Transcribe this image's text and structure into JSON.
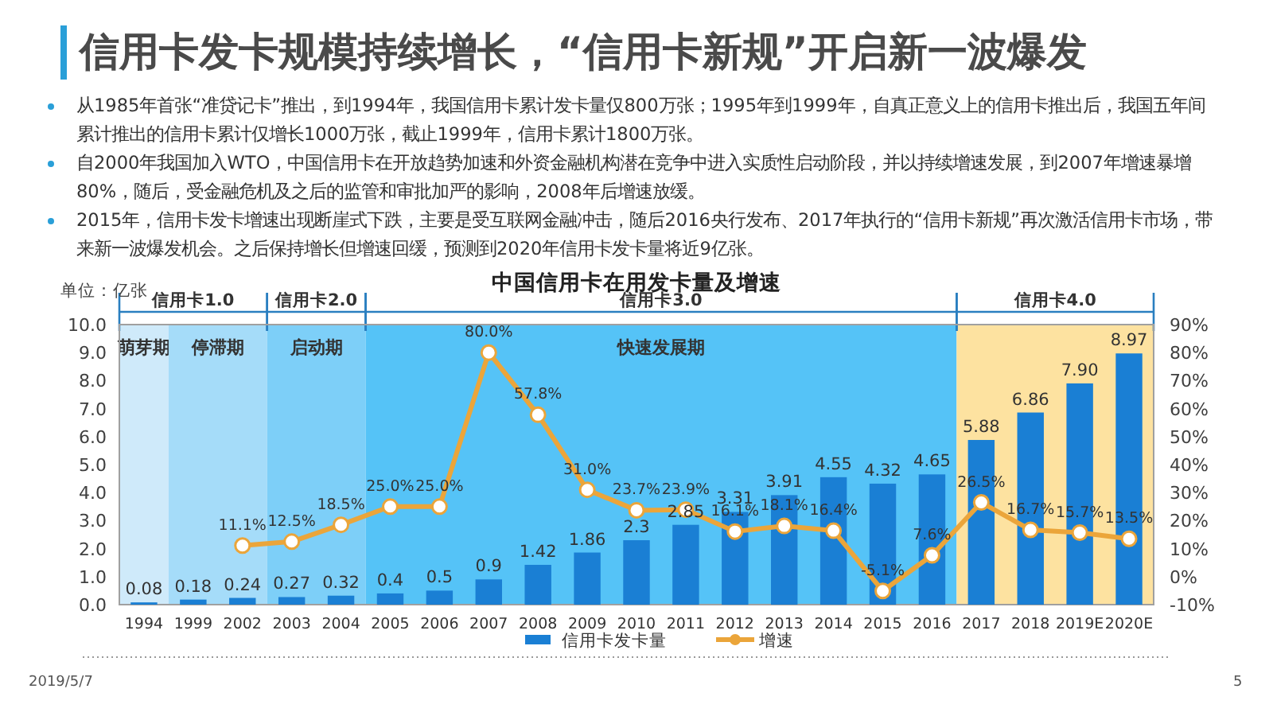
{
  "chart_data": {
    "type": "bar",
    "title": "信用卡发卡规模持续增长，“信用卡新规”开启新一波爆发",
    "subtitle": "中国信用卡在用发卡量及增速",
    "ylabel": "单位：亿张",
    "categories": [
      "1994",
      "1999",
      "2002",
      "2003",
      "2004",
      "2005",
      "2006",
      "2007",
      "2008",
      "2009",
      "2010",
      "2011",
      "2012",
      "2013",
      "2014",
      "2015",
      "2016",
      "2017",
      "2018",
      "2019E",
      "2020E"
    ],
    "series": [
      {
        "name": "信用卡发卡量",
        "type": "bar",
        "color": "#1a7fd4",
        "values": [
          0.08,
          0.18,
          0.24,
          0.27,
          0.32,
          0.4,
          0.5,
          0.9,
          1.42,
          1.86,
          2.3,
          2.85,
          3.31,
          3.91,
          4.55,
          4.32,
          4.65,
          5.88,
          6.86,
          7.9,
          8.97
        ],
        "value_labels": [
          "0.08",
          "0.18",
          "0.24",
          "0.27",
          "0.32",
          "0.4",
          "0.5",
          "0.9",
          "1.42",
          "1.86",
          "2.3",
          "2.85",
          "3.31",
          "3.91",
          "4.55",
          "4.32",
          "4.65",
          "5.88",
          "6.86",
          "7.90",
          "8.97"
        ]
      },
      {
        "name": "增速",
        "type": "line",
        "axis": "y2",
        "color": "#eba53a",
        "values": [
          null,
          null,
          11.1,
          12.5,
          18.5,
          25.0,
          25.0,
          80.0,
          57.8,
          31.0,
          23.7,
          23.9,
          16.1,
          18.1,
          16.4,
          -5.1,
          7.6,
          26.5,
          16.7,
          15.7,
          13.5
        ],
        "value_labels": [
          null,
          null,
          "11.1%",
          "12.5%",
          "18.5%",
          "25.0%",
          "25.0%",
          "80.0%",
          "57.8%",
          "31.0%",
          "23.7%",
          "23.9%",
          "16.1%",
          "18.1%",
          "16.4%",
          "-5.1%",
          "7.6%",
          "26.5%",
          "16.7%",
          "15.7%",
          "13.5%"
        ]
      }
    ],
    "ylim": [
      0,
      10
    ],
    "yticks": [
      {
        "value": 0,
        "label": "0.0"
      },
      {
        "value": 1,
        "label": "1.0"
      },
      {
        "value": 2,
        "label": "2.0"
      },
      {
        "value": 3,
        "label": "3.0"
      },
      {
        "value": 4,
        "label": "4.0"
      },
      {
        "value": 5,
        "label": "5.0"
      },
      {
        "value": 6,
        "label": "6.0"
      },
      {
        "value": 7,
        "label": "7.0"
      },
      {
        "value": 8,
        "label": "8.0"
      },
      {
        "value": 9,
        "label": "9.0"
      },
      {
        "value": 10,
        "label": "10.0"
      }
    ],
    "y2lim": [
      -10,
      90
    ],
    "y2ticks": [
      {
        "value": -10,
        "label": "-10%"
      },
      {
        "value": 0,
        "label": "0%"
      },
      {
        "value": 10,
        "label": "10%"
      },
      {
        "value": 20,
        "label": "20%"
      },
      {
        "value": 30,
        "label": "30%"
      },
      {
        "value": 40,
        "label": "40%"
      },
      {
        "value": 50,
        "label": "50%"
      },
      {
        "value": 60,
        "label": "60%"
      },
      {
        "value": 70,
        "label": "70%"
      },
      {
        "value": 80,
        "label": "80%"
      },
      {
        "value": 90,
        "label": "90%"
      }
    ],
    "bands": [
      {
        "axis": "x",
        "from": "1994",
        "to": "1994",
        "label": "萌芽期",
        "color": "#cfeafa"
      },
      {
        "axis": "x",
        "from": "1999",
        "to": "2002",
        "label": "停滞期",
        "color": "#a5dcf9"
      },
      {
        "axis": "x",
        "from": "2003",
        "to": "2004",
        "label": "启动期",
        "color": "#7dcff8"
      },
      {
        "axis": "x",
        "from": "2005",
        "to": "2016",
        "label": "快速发展期",
        "color": "#55c3f7"
      },
      {
        "axis": "x",
        "from": "2017",
        "to": "2020E",
        "color": "#fde2a0"
      }
    ],
    "annotations": [
      "从1985年首张“准贷记卡”推出，到1994年，我国信用卡累计发卡量仅800万张；1995年到1999年，自真正意义上的信用卡推出后，我国五年间累计推出的信用卡累计仅增长1000万张，截止1999年，信用卡累计1800万张。",
      "自2000年我国加入WTO，中国信用卡在开放趋势加速和外资金融机构潜在竞争中进入实质性启动阶段，并以持续增速发展，到2007年增速暴增80%，随后，受金融危机及之后的监管和审批加严的影响，2008年后增速放缓。",
      "2015年，信用卡发卡增速出现断崖式下跌，主要是受互联网金融冲击，随后2016央行发布、2017年执行的“信用卡新规”再次激活信用卡市场，带来新一波爆发机会。之后保持增长但增速回缓，预测到2020年信用卡发卡量将近9亿张。",
      "2019/5/7",
      "5",
      "信用卡1.0",
      "信用卡2.0",
      "信用卡3.0",
      "信用卡4.0"
    ],
    "marker": "circle",
    "legend": "bottom",
    "grid": false
  }
}
